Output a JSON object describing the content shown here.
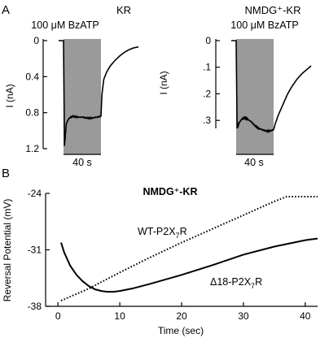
{
  "chart_data": [
    {
      "panel": "A",
      "type": "line",
      "title": "KR",
      "stimulus_label": "100 μM BzATP",
      "ylabel": "I (nA)",
      "yticks": [
        0,
        0.4,
        0.8,
        1.2
      ],
      "ylim": [
        0,
        1.2
      ],
      "y_inverted": true,
      "scale_bar_label": "40 s",
      "shaded_interval": [
        0,
        40
      ],
      "x": [
        0,
        1,
        3,
        6,
        10,
        15,
        20,
        25,
        30,
        35,
        40,
        41,
        43,
        46,
        50,
        55,
        60,
        65,
        70,
        75,
        80
      ],
      "y": [
        0.0,
        1.17,
        0.92,
        0.86,
        0.84,
        0.85,
        0.85,
        0.86,
        0.86,
        0.85,
        0.84,
        0.6,
        0.43,
        0.35,
        0.28,
        0.22,
        0.17,
        0.13,
        0.1,
        0.08,
        0.07
      ]
    },
    {
      "panel": "A",
      "type": "line",
      "title": "NMDG⁺-KR",
      "stimulus_label": "100 μM BzATP",
      "ylabel": "I (nA)",
      "yticks": [
        0,
        0.1,
        0.2,
        0.3
      ],
      "ylim": [
        0,
        0.33
      ],
      "y_inverted": true,
      "scale_bar_label": "40 s",
      "shaded_interval": [
        0,
        40
      ],
      "x": [
        0,
        1,
        3,
        6,
        9,
        12,
        16,
        20,
        24,
        28,
        32,
        36,
        40,
        42,
        45,
        50,
        55,
        60,
        65,
        70,
        75,
        80
      ],
      "y": [
        0.0,
        0.33,
        0.31,
        0.295,
        0.29,
        0.295,
        0.305,
        0.32,
        0.33,
        0.335,
        0.34,
        0.34,
        0.335,
        0.31,
        0.28,
        0.24,
        0.2,
        0.17,
        0.145,
        0.125,
        0.11,
        0.095
      ]
    },
    {
      "panel": "B",
      "type": "line",
      "title": "NMDG⁺-KR",
      "xlabel": "Time (sec)",
      "ylabel": "Reversal Potential (mV)",
      "xticks": [
        0,
        10,
        20,
        30,
        40
      ],
      "yticks": [
        -24,
        -31,
        -38
      ],
      "xlim": [
        -2,
        42
      ],
      "ylim": [
        -38,
        -24
      ],
      "series": [
        {
          "name": "WT-P2X7R",
          "style": "dotted",
          "x": [
            0.5,
            5,
            10,
            15,
            20,
            25,
            30,
            35,
            37,
            40,
            42
          ],
          "y": [
            -37.3,
            -35.8,
            -33.8,
            -31.9,
            -30.1,
            -28.4,
            -26.7,
            -25.0,
            -24.4,
            -24.4,
            -24.4
          ]
        },
        {
          "name": "Δ18-P2X7R",
          "style": "solid",
          "x": [
            0.5,
            1,
            2,
            3,
            4,
            5,
            6,
            7,
            8,
            9,
            10,
            12,
            15,
            20,
            25,
            30,
            35,
            40,
            42
          ],
          "y": [
            -30.1,
            -31.3,
            -33.0,
            -34.1,
            -34.9,
            -35.5,
            -35.9,
            -36.1,
            -36.2,
            -36.2,
            -36.1,
            -35.8,
            -35.2,
            -34.1,
            -32.9,
            -31.6,
            -30.6,
            -29.8,
            -29.6
          ]
        }
      ]
    }
  ]
}
